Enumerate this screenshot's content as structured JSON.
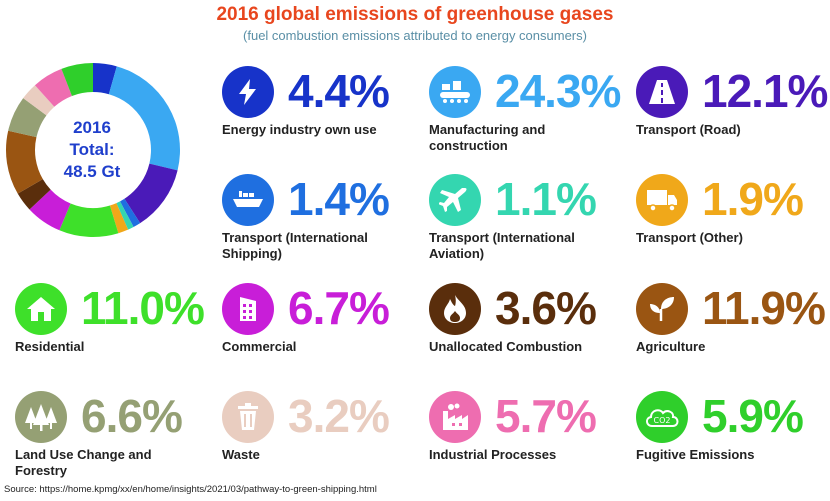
{
  "title": "2016 global emissions of greenhouse gases",
  "subtitle": "(fuel combustion emissions attributed to energy consumers)",
  "center": {
    "line1": "2016",
    "line2": "Total:",
    "line3": "48.5 Gt"
  },
  "source": "Source: https://home.kpmg/xx/en/home/insights/2021/03/pathway-to-green-shipping.html",
  "chart_data": {
    "type": "pie",
    "title": "2016 global emissions of greenhouse gases",
    "total": "48.5 Gt",
    "slices": [
      {
        "label": "Energy industry own use",
        "value": 4.4,
        "color": "#1733c9",
        "icon": "lightning-icon"
      },
      {
        "label": "Manufacturing and construction",
        "value": 24.3,
        "color": "#3aa8f2",
        "icon": "factory-icon"
      },
      {
        "label": "Transport (Road)",
        "value": 12.1,
        "color": "#4a1ab8",
        "icon": "road-icon"
      },
      {
        "label": "Transport (International Shipping)",
        "value": 1.4,
        "color": "#1f6fe0",
        "icon": "ship-icon"
      },
      {
        "label": "Transport (International Aviation)",
        "value": 1.1,
        "color": "#34d6b0",
        "icon": "plane-icon"
      },
      {
        "label": "Transport (Other)",
        "value": 1.9,
        "color": "#f0a81a",
        "icon": "truck-icon"
      },
      {
        "label": "Residential",
        "value": 11.0,
        "color": "#3ee02a",
        "icon": "house-icon"
      },
      {
        "label": "Commercial",
        "value": 6.7,
        "color": "#c81ed8",
        "icon": "building-icon"
      },
      {
        "label": "Unallocated Combustion",
        "value": 3.6,
        "color": "#5a2e0c",
        "icon": "flame-icon"
      },
      {
        "label": "Agriculture",
        "value": 11.9,
        "color": "#9a5512",
        "icon": "plant-icon"
      },
      {
        "label": "Land Use Change and Forestry",
        "value": 6.6,
        "color": "#95a074",
        "icon": "trees-icon"
      },
      {
        "label": "Waste",
        "value": 3.2,
        "color": "#e9cdc0",
        "icon": "trash-icon"
      },
      {
        "label": "Industrial Processes",
        "value": 5.7,
        "color": "#ee6db0",
        "icon": "industry-icon"
      },
      {
        "label": "Fugitive Emissions",
        "value": 5.9,
        "color": "#2fcf2b",
        "icon": "cloud-co2-icon"
      }
    ]
  },
  "tiles": [
    {
      "pct": "4.4%",
      "label": "Energy industry own use"
    },
    {
      "pct": "24.3%",
      "label": "Manufacturing and construction"
    },
    {
      "pct": "12.1%",
      "label": "Transport (Road)"
    },
    {
      "pct": "1.4%",
      "label": "Transport (International Shipping)"
    },
    {
      "pct": "1.1%",
      "label": "Transport (International Aviation)"
    },
    {
      "pct": "1.9%",
      "label": "Transport (Other)"
    },
    {
      "pct": "11.0%",
      "label": "Residential"
    },
    {
      "pct": "6.7%",
      "label": "Commercial"
    },
    {
      "pct": "3.6%",
      "label": "Unallocated Combustion"
    },
    {
      "pct": "11.9%",
      "label": "Agriculture"
    },
    {
      "pct": "6.6%",
      "label": "Land Use Change and Forestry"
    },
    {
      "pct": "3.2%",
      "label": "Waste"
    },
    {
      "pct": "5.7%",
      "label": "Industrial Processes"
    },
    {
      "pct": "5.9%",
      "label": "Fugitive Emissions"
    }
  ],
  "co2_text": "CO2"
}
